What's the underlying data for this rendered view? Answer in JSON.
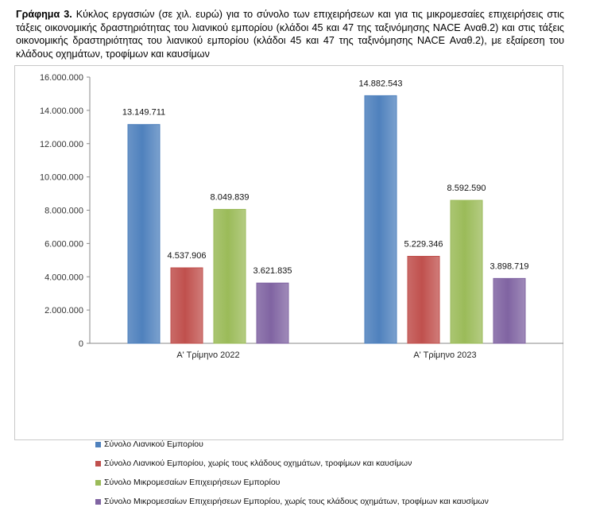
{
  "caption": {
    "prefix": "Γράφημα 3.",
    "text": "Κύκλος εργασιών (σε χιλ. ευρώ) για το σύνολο των επιχειρήσεων και για τις μικρομεσαίες επιχειρήσεις στις τάξεις οικονομικής δραστηριότητας του λιανικού εμπορίου (κλάδοι 45 και 47 της ταξινόμησης NACE Αναθ.2) και στις τάξεις οικονομικής δραστηριότητας του λιανικού εμπορίου (κλάδοι 45 και 47 της ταξινόμησης NACE Αναθ.2), με εξαίρεση του κλάδους οχημάτων, τροφίμων και καυσίμων"
  },
  "chart_data": {
    "type": "bar",
    "categories": [
      "Α' Τρίμηνο 2022",
      "Α' Τρίμηνο 2023"
    ],
    "series": [
      {
        "name": "Σύνολο Λιανικού Εμπορίου",
        "color": "#4f81bd",
        "values": [
          13149711,
          14882543
        ],
        "labels": [
          "13.149.711",
          "14.882.543"
        ]
      },
      {
        "name": "Σύνολο Λιανικού Εμπορίου, χωρίς τους κλάδους οχημάτων, τροφίμων και καυσίμων",
        "color": "#c0504d",
        "values": [
          4537906,
          5229346
        ],
        "labels": [
          "4.537.906",
          "5.229.346"
        ]
      },
      {
        "name": "Σύνολο Μικρομεσαίων Επιχειρήσεων Εμπορίου",
        "color": "#9bbb59",
        "values": [
          8049839,
          8592590
        ],
        "labels": [
          "8.049.839",
          "8.592.590"
        ]
      },
      {
        "name": "Σύνολο Μικρομεσαίων Επιχειρήσεων Εμπορίου, χωρίς τους κλάδους οχημάτων, τροφίμων και καυσίμων",
        "color": "#8064a2",
        "values": [
          3621835,
          3898719
        ],
        "labels": [
          "3.621.835",
          "3.898.719"
        ]
      }
    ],
    "ylim": [
      0,
      16000000
    ],
    "yticks": [
      0,
      2000000,
      4000000,
      6000000,
      8000000,
      10000000,
      12000000,
      14000000,
      16000000
    ],
    "ytick_labels": [
      "0",
      "2.000.000",
      "4.000.000",
      "6.000.000",
      "8.000.000",
      "10.000.000",
      "12.000.000",
      "14.000.000",
      "16.000.000"
    ],
    "grid": false,
    "legend_position": "bottom"
  }
}
